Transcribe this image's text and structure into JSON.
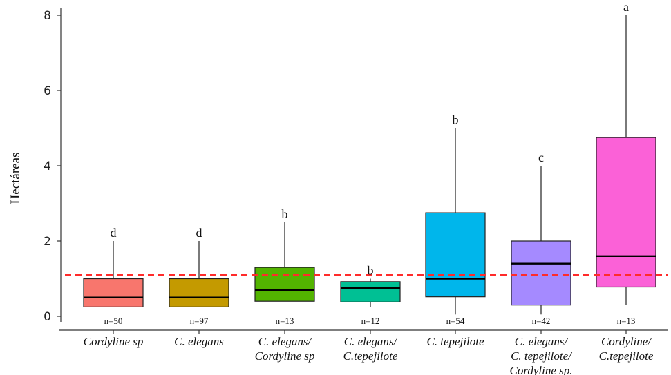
{
  "chart_data": {
    "type": "boxplot",
    "ylabel": "Hectáreas",
    "ylim": [
      0,
      8
    ],
    "yticks": [
      0,
      2,
      4,
      6,
      8
    ],
    "reference_line": {
      "y": 1.1,
      "color": "#ff2b2b",
      "style": "dashed"
    },
    "grid": false,
    "categories": [
      {
        "label": [
          "Cordyline sp"
        ],
        "color": "#f8766d",
        "whisker_low": 0.25,
        "q1": 0.25,
        "median": 0.5,
        "q3": 1.0,
        "whisker_high": 2.0,
        "letter": "d",
        "n": "n=50"
      },
      {
        "label": [
          "C. elegans"
        ],
        "color": "#c49a00",
        "whisker_low": 0.25,
        "q1": 0.25,
        "median": 0.5,
        "q3": 1.0,
        "whisker_high": 2.0,
        "letter": "d",
        "n": "n=97"
      },
      {
        "label": [
          "C. elegans/",
          "Cordyline sp"
        ],
        "color": "#53b400",
        "whisker_low": 0.4,
        "q1": 0.4,
        "median": 0.7,
        "q3": 1.3,
        "whisker_high": 2.5,
        "letter": "b",
        "n": "n=13"
      },
      {
        "label": [
          "C. elegans/",
          "C.tepejilote"
        ],
        "color": "#00c094",
        "whisker_low": 0.25,
        "q1": 0.38,
        "median": 0.75,
        "q3": 0.92,
        "whisker_high": 1.0,
        "letter": "b",
        "n": "n=12"
      },
      {
        "label": [
          "C. tepejilote"
        ],
        "color": "#00b6eb",
        "whisker_low": 0.05,
        "q1": 0.52,
        "median": 1.0,
        "q3": 2.75,
        "whisker_high": 5.0,
        "letter": "b",
        "n": "n=54"
      },
      {
        "label": [
          "C. elegans/",
          "C. tepejilote/",
          "Cordyline sp."
        ],
        "color": "#a58aff",
        "whisker_low": 0.05,
        "q1": 0.3,
        "median": 1.4,
        "q3": 2.0,
        "whisker_high": 4.0,
        "letter": "c",
        "n": "n=42"
      },
      {
        "label": [
          "Cordyline/",
          "C.tepejilote"
        ],
        "color": "#fb61d7",
        "whisker_low": 0.3,
        "q1": 0.78,
        "median": 1.6,
        "q3": 4.75,
        "whisker_high": 8.0,
        "letter": "a",
        "n": "n=13"
      }
    ]
  }
}
